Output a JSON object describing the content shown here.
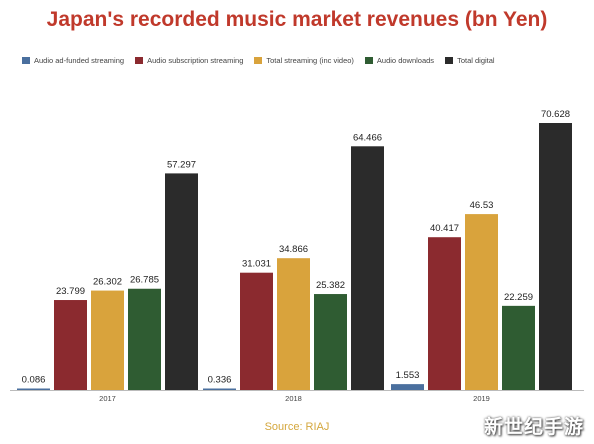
{
  "chart_data": {
    "type": "bar",
    "title": "Japan's recorded music market revenues (bn Yen)",
    "categories": [
      "2017",
      "2018",
      "2019"
    ],
    "series": [
      {
        "name": "Audio ad-funded streaming",
        "color": "#4a6f9e",
        "values": [
          0.086,
          0.336,
          1.553
        ]
      },
      {
        "name": "Audio subscription streaming",
        "color": "#8b2a2f",
        "values": [
          23.799,
          31.031,
          40.417
        ]
      },
      {
        "name": "Total streaming (inc video)",
        "color": "#d9a33c",
        "values": [
          26.302,
          34.866,
          46.53
        ]
      },
      {
        "name": "Audio downloads",
        "color": "#2f5c32",
        "values": [
          26.785,
          25.382,
          22.259
        ]
      },
      {
        "name": "Total digital",
        "color": "#2b2b2b",
        "values": [
          57.297,
          64.466,
          70.628
        ]
      }
    ],
    "value_labels": [
      [
        "0.086",
        "23.799",
        "26.302",
        "26.785",
        "57.297"
      ],
      [
        "0.336",
        "31.031",
        "34.866",
        "25.382",
        "64.466"
      ],
      [
        "1.553",
        "40.417",
        "46.53",
        "22.259",
        "70.628"
      ]
    ],
    "ylim": [
      0,
      80
    ],
    "grid": false,
    "legend_position": "top"
  },
  "source": "Source: RIAJ",
  "watermark": "新世纪手游"
}
